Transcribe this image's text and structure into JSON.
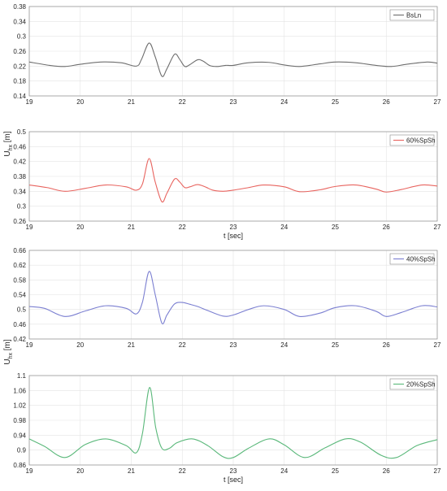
{
  "figure": {
    "ylabel_main": "U",
    "ylabel_sub": "hx",
    "ylabel_unit": " [m]",
    "xlabel": "t [sec]"
  },
  "chart_data": [
    {
      "type": "line",
      "legend": "BsLn",
      "legend_position": "top-right",
      "color": "#6e6e6e",
      "grid": true,
      "xlim": [
        19,
        27
      ],
      "ylim": [
        0.14,
        0.38
      ],
      "xticks": [
        "19",
        "20",
        "21",
        "22",
        "23",
        "24",
        "25",
        "26",
        "27"
      ],
      "yticks": [
        "0.14",
        "0.18",
        "0.22",
        "0.26",
        "0.3",
        "0.34",
        "0.38"
      ],
      "xlabel": "",
      "series": [
        {
          "name": "BsLn",
          "x": [
            19.0,
            19.4,
            19.7,
            20.0,
            20.4,
            20.8,
            21.1,
            21.2,
            21.35,
            21.47,
            21.6,
            21.7,
            21.85,
            21.95,
            22.05,
            22.15,
            22.3,
            22.4,
            22.55,
            22.7,
            22.85,
            23.0,
            23.3,
            23.7,
            24.0,
            24.3,
            24.7,
            25.0,
            25.4,
            25.8,
            26.1,
            26.4,
            26.8,
            27.0
          ],
          "y": [
            0.231,
            0.222,
            0.219,
            0.225,
            0.231,
            0.229,
            0.22,
            0.238,
            0.282,
            0.245,
            0.193,
            0.213,
            0.252,
            0.238,
            0.219,
            0.224,
            0.237,
            0.234,
            0.221,
            0.219,
            0.222,
            0.222,
            0.229,
            0.23,
            0.223,
            0.219,
            0.226,
            0.231,
            0.229,
            0.222,
            0.219,
            0.225,
            0.231,
            0.228
          ]
        }
      ]
    },
    {
      "type": "line",
      "legend": "60%SpSh",
      "legend_position": "top-right",
      "color": "#e8645f",
      "grid": true,
      "xlim": [
        19,
        27
      ],
      "ylim": [
        0.26,
        0.5
      ],
      "xticks": [
        "19",
        "20",
        "21",
        "22",
        "23",
        "24",
        "25",
        "26",
        "27"
      ],
      "yticks": [
        "0.26",
        "0.3",
        "0.34",
        "0.38",
        "0.42",
        "0.46",
        "0.5"
      ],
      "xlabel": "t [sec]",
      "series": [
        {
          "name": "60%SpSh",
          "x": [
            19.0,
            19.35,
            19.7,
            20.1,
            20.5,
            20.9,
            21.1,
            21.22,
            21.35,
            21.47,
            21.6,
            21.7,
            21.85,
            21.95,
            22.05,
            22.15,
            22.3,
            22.45,
            22.6,
            22.8,
            23.0,
            23.3,
            23.6,
            24.0,
            24.3,
            24.7,
            25.0,
            25.4,
            25.8,
            26.0,
            26.3,
            26.7,
            27.0
          ],
          "y": [
            0.357,
            0.35,
            0.34,
            0.348,
            0.357,
            0.352,
            0.343,
            0.36,
            0.428,
            0.365,
            0.312,
            0.335,
            0.373,
            0.365,
            0.35,
            0.352,
            0.358,
            0.352,
            0.343,
            0.34,
            0.343,
            0.35,
            0.357,
            0.352,
            0.339,
            0.344,
            0.353,
            0.357,
            0.346,
            0.338,
            0.345,
            0.357,
            0.354
          ]
        }
      ]
    },
    {
      "type": "line",
      "legend": "40%SpSh",
      "legend_position": "top-right",
      "color": "#7b7fd1",
      "grid": true,
      "xlim": [
        19,
        27
      ],
      "ylim": [
        0.42,
        0.66
      ],
      "xticks": [
        "19",
        "20",
        "21",
        "22",
        "23",
        "24",
        "25",
        "26",
        "27"
      ],
      "yticks": [
        "0.42",
        "0.46",
        "0.5",
        "0.54",
        "0.58",
        "0.62",
        "0.66"
      ],
      "xlabel": "",
      "series": [
        {
          "name": "40%SpSh",
          "x": [
            19.0,
            19.3,
            19.7,
            20.1,
            20.5,
            20.9,
            21.1,
            21.22,
            21.35,
            21.47,
            21.6,
            21.7,
            21.85,
            22.0,
            22.15,
            22.3,
            22.5,
            22.8,
            23.0,
            23.3,
            23.6,
            24.0,
            24.3,
            24.7,
            25.0,
            25.4,
            25.8,
            26.0,
            26.3,
            26.7,
            27.0
          ],
          "y": [
            0.508,
            0.503,
            0.481,
            0.496,
            0.51,
            0.503,
            0.488,
            0.52,
            0.603,
            0.54,
            0.463,
            0.485,
            0.515,
            0.519,
            0.514,
            0.508,
            0.497,
            0.482,
            0.485,
            0.5,
            0.51,
            0.5,
            0.481,
            0.49,
            0.505,
            0.51,
            0.495,
            0.481,
            0.492,
            0.51,
            0.507
          ]
        }
      ]
    },
    {
      "type": "line",
      "legend": "20%SpSh",
      "legend_position": "top-right",
      "color": "#5ab87a",
      "grid": true,
      "xlim": [
        19,
        27
      ],
      "ylim": [
        0.86,
        1.1
      ],
      "xticks": [
        "19",
        "20",
        "21",
        "22",
        "23",
        "24",
        "25",
        "26",
        "27"
      ],
      "yticks": [
        "0.86",
        "0.9",
        "0.94",
        "0.98",
        "1.02",
        "1.06",
        "1.1"
      ],
      "xlabel": "t [sec]",
      "series": [
        {
          "name": "20%SpSh",
          "x": [
            19.0,
            19.3,
            19.7,
            20.1,
            20.5,
            20.9,
            21.1,
            21.22,
            21.36,
            21.48,
            21.6,
            21.75,
            21.9,
            22.2,
            22.5,
            22.8,
            23.0,
            23.3,
            23.7,
            24.0,
            24.4,
            24.8,
            25.2,
            25.5,
            25.9,
            26.2,
            26.6,
            27.0
          ],
          "y": [
            0.93,
            0.91,
            0.88,
            0.915,
            0.93,
            0.912,
            0.893,
            0.945,
            1.068,
            0.96,
            0.905,
            0.905,
            0.92,
            0.93,
            0.912,
            0.882,
            0.88,
            0.905,
            0.93,
            0.914,
            0.88,
            0.906,
            0.93,
            0.921,
            0.886,
            0.88,
            0.912,
            0.928
          ]
        }
      ]
    }
  ]
}
